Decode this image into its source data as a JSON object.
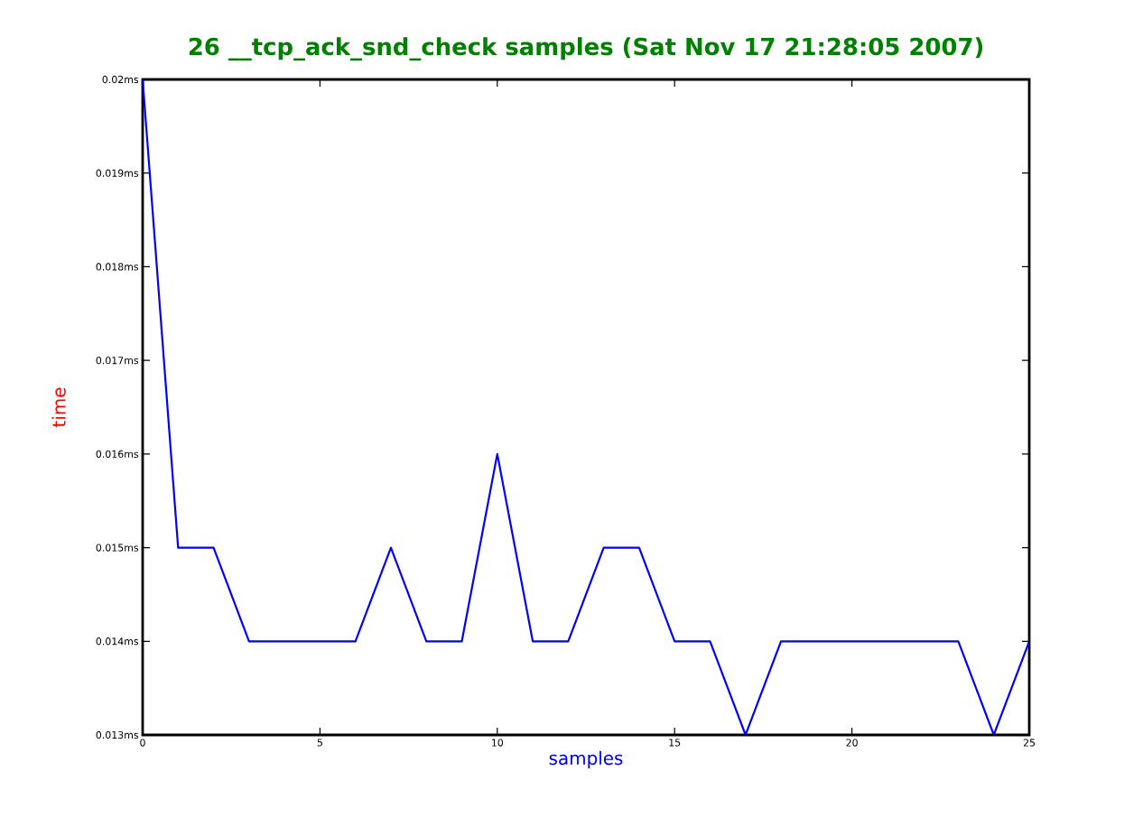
{
  "chart_data": {
    "type": "line",
    "title": "26 __tcp_ack_snd_check samples (Sat Nov 17 21:28:05 2007)",
    "xlabel": "samples",
    "ylabel": "time",
    "x": [
      0,
      1,
      2,
      3,
      4,
      5,
      6,
      7,
      8,
      9,
      10,
      11,
      12,
      13,
      14,
      15,
      16,
      17,
      18,
      19,
      20,
      21,
      22,
      23,
      24,
      25
    ],
    "series": [
      {
        "color": "#0000ff",
        "values": [
          0.02,
          0.015,
          0.015,
          0.014,
          0.014,
          0.014,
          0.014,
          0.015,
          0.014,
          0.014,
          0.016,
          0.014,
          0.014,
          0.015,
          0.015,
          0.014,
          0.014,
          0.013,
          0.014,
          0.014,
          0.014,
          0.014,
          0.014,
          0.014,
          0.013,
          0.014
        ]
      }
    ],
    "xlim": [
      0,
      25
    ],
    "ylim": [
      0.013,
      0.02
    ],
    "xticks": [
      0,
      5,
      10,
      15,
      20,
      25
    ],
    "yticks": [
      {
        "value": 0.013,
        "label": "0.013ms"
      },
      {
        "value": 0.014,
        "label": "0.014ms"
      },
      {
        "value": 0.015,
        "label": "0.015ms"
      },
      {
        "value": 0.016,
        "label": "0.016ms"
      },
      {
        "value": 0.017,
        "label": "0.017ms"
      },
      {
        "value": 0.018,
        "label": "0.018ms"
      },
      {
        "value": 0.019,
        "label": "0.019ms"
      },
      {
        "value": 0.02,
        "label": "0.02ms"
      }
    ],
    "marker": "none",
    "line_style": "solid"
  }
}
